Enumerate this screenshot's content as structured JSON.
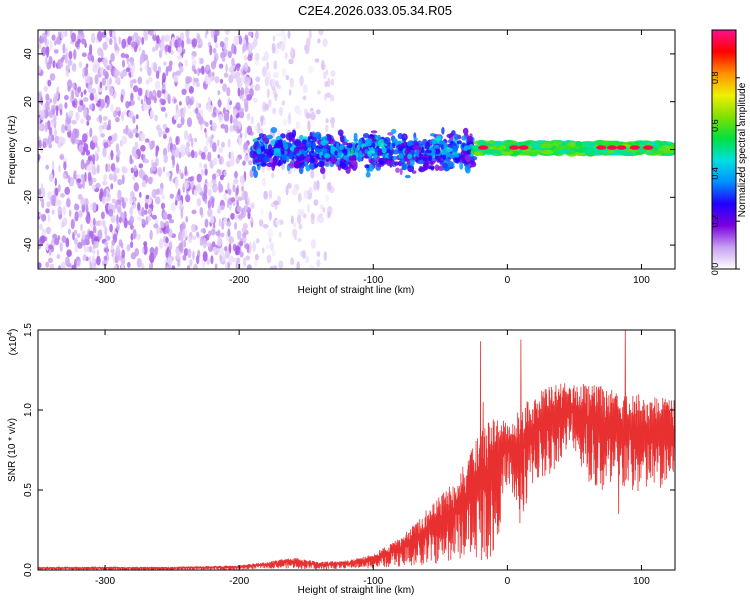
{
  "title": "C2E4.2026.033.05.34.R05",
  "chart_data": [
    {
      "type": "heatmap",
      "panel": "spectrogram",
      "xlabel": "Height of straight line (km)",
      "ylabel": "Frequency (Hz)",
      "xlim": [
        -350,
        125
      ],
      "ylim": [
        -50,
        50
      ],
      "x_ticks": [
        -300,
        -200,
        -100,
        0,
        100
      ],
      "y_ticks": [
        -40,
        -20,
        0,
        20,
        40
      ],
      "colorbar": {
        "label": "Normalized spectral amplitude",
        "range": [
          0,
          1
        ],
        "ticks": [
          "0.0",
          "0.2",
          "0.4",
          "0.6",
          "0.8"
        ],
        "colors": [
          "#ffffff",
          "#c8a0f0",
          "#7b00e0",
          "#2000ff",
          "#0090ff",
          "#00e0e0",
          "#00e040",
          "#80e000",
          "#f0f000",
          "#ff9000",
          "#ff0000",
          "#ff1090"
        ]
      },
      "regions": [
        {
          "x": [
            -350,
            -190
          ],
          "freq_band": [
            -50,
            50
          ],
          "amplitude": 0.08,
          "texture": "scattered speckle"
        },
        {
          "x": [
            -190,
            -130
          ],
          "freq_band": [
            -50,
            50
          ],
          "amplitude": 0.04,
          "texture": "sparse speckle"
        },
        {
          "x": [
            -190,
            -25
          ],
          "freq_band": [
            -12,
            10
          ],
          "amplitude": 0.28,
          "texture": "dense band"
        },
        {
          "x": [
            -25,
            125
          ],
          "freq_band": [
            -2,
            3
          ],
          "amplitude": 0.55,
          "texture": "narrow line"
        }
      ],
      "hot_spots_x": [
        -18,
        5,
        12,
        70,
        78,
        85,
        95,
        105
      ]
    },
    {
      "type": "line",
      "panel": "snr",
      "xlabel": "Height of straight line (km)",
      "ylabel": "SNR (10 * v/v)",
      "y_multiplier": "(x10^4)",
      "xlim": [
        -350,
        125
      ],
      "ylim": [
        0,
        1.5
      ],
      "x_ticks": [
        -300,
        -200,
        -100,
        0,
        100
      ],
      "y_ticks": [
        "0.0",
        "0.5",
        "1.0",
        "1.5"
      ],
      "color": "#e83030",
      "envelope": {
        "x": [
          -350,
          -250,
          -200,
          -180,
          -160,
          -140,
          -120,
          -100,
          -80,
          -60,
          -40,
          -30,
          -20,
          -10,
          0,
          10,
          20,
          30,
          40,
          50,
          60,
          70,
          80,
          90,
          100,
          110,
          125
        ],
        "upper": [
          0.02,
          0.02,
          0.03,
          0.05,
          0.08,
          0.05,
          0.06,
          0.1,
          0.2,
          0.38,
          0.55,
          0.7,
          0.86,
          0.97,
          0.92,
          1.02,
          1.1,
          1.14,
          1.17,
          1.18,
          1.17,
          1.15,
          1.12,
          1.1,
          1.1,
          1.08,
          1.08
        ],
        "lower": [
          0.0,
          0.0,
          0.0,
          0.01,
          0.01,
          0.0,
          0.01,
          0.01,
          0.02,
          0.03,
          0.05,
          0.08,
          0.06,
          0.05,
          0.55,
          0.25,
          0.55,
          0.55,
          0.7,
          0.75,
          0.55,
          0.45,
          0.45,
          0.5,
          0.45,
          0.5,
          0.5
        ]
      },
      "spikes": [
        {
          "x": -20,
          "y": 1.43
        },
        {
          "x": -18,
          "y": 1.05
        },
        {
          "x": 10,
          "y": 1.44
        },
        {
          "x": 88,
          "y": 1.53
        },
        {
          "x": 83,
          "y": 0.35
        }
      ]
    }
  ]
}
